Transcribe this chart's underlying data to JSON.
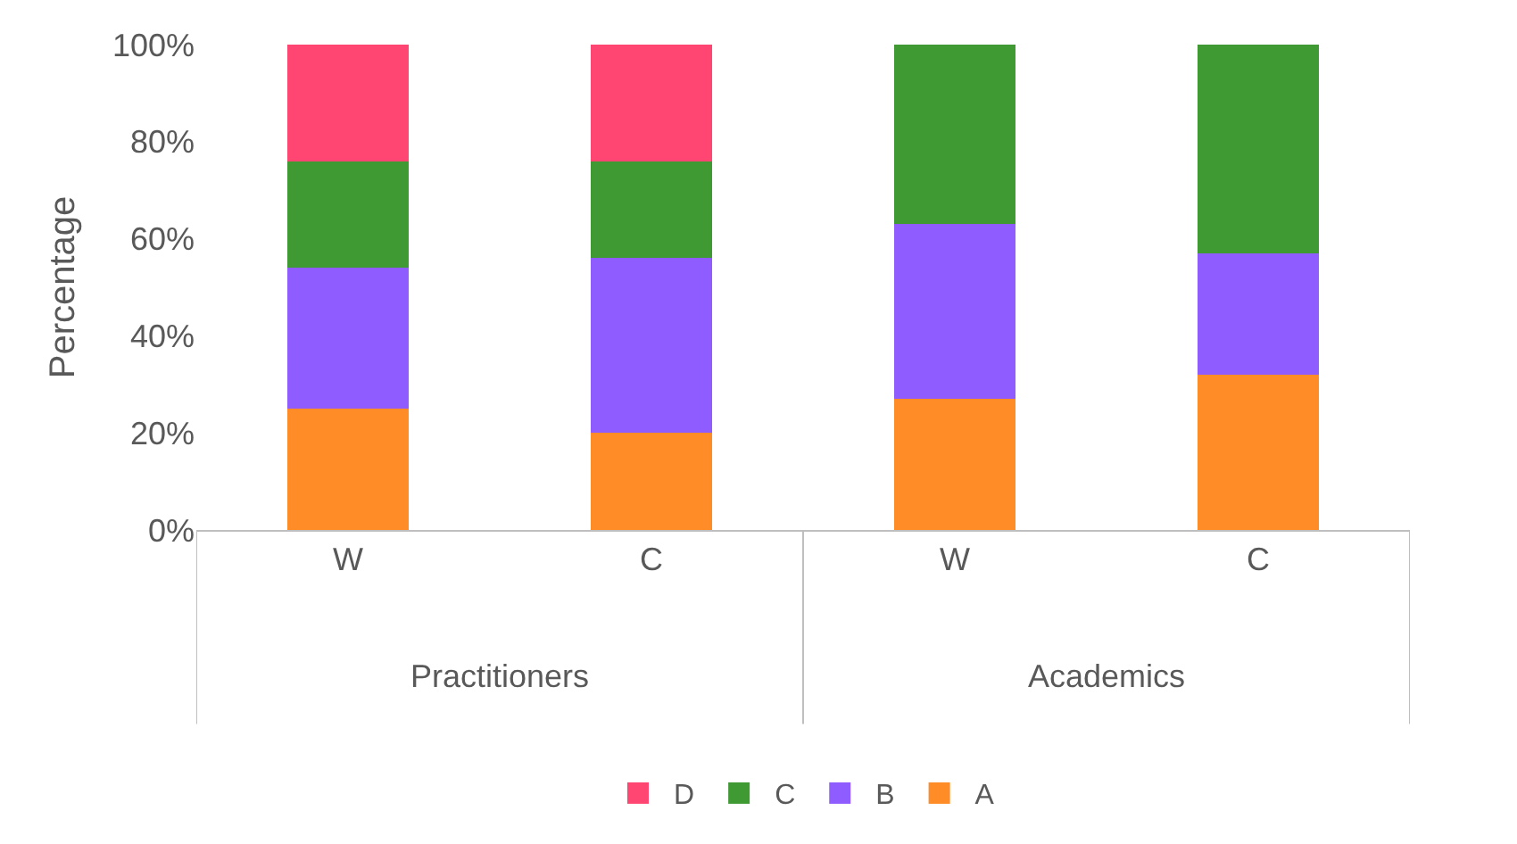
{
  "chart_data": {
    "type": "bar",
    "stacked": true,
    "ylabel": "Percentage",
    "categories": [
      "W",
      "C",
      "W",
      "C"
    ],
    "series": [
      {
        "name": "A",
        "color": "#ff8c26",
        "values": [
          25,
          20,
          27,
          32
        ]
      },
      {
        "name": "B",
        "color": "#8f5cff",
        "values": [
          29,
          36,
          36,
          25
        ]
      },
      {
        "name": "C",
        "color": "#3f9a34",
        "values": [
          22,
          20,
          37,
          43
        ]
      },
      {
        "name": "D",
        "color": "#ff4672",
        "values": [
          24,
          24,
          null,
          null
        ]
      }
    ],
    "ylim": [
      0,
      100
    ],
    "yticks": [
      {
        "value": 0,
        "label": "0%"
      },
      {
        "value": 20,
        "label": "20%"
      },
      {
        "value": 40,
        "label": "40%"
      },
      {
        "value": 60,
        "label": "60%"
      },
      {
        "value": 80,
        "label": "80%"
      },
      {
        "value": 100,
        "label": "100%"
      }
    ],
    "annotations": [
      "Practitioners",
      "Academics"
    ],
    "grid": false,
    "legend": "bottom"
  }
}
